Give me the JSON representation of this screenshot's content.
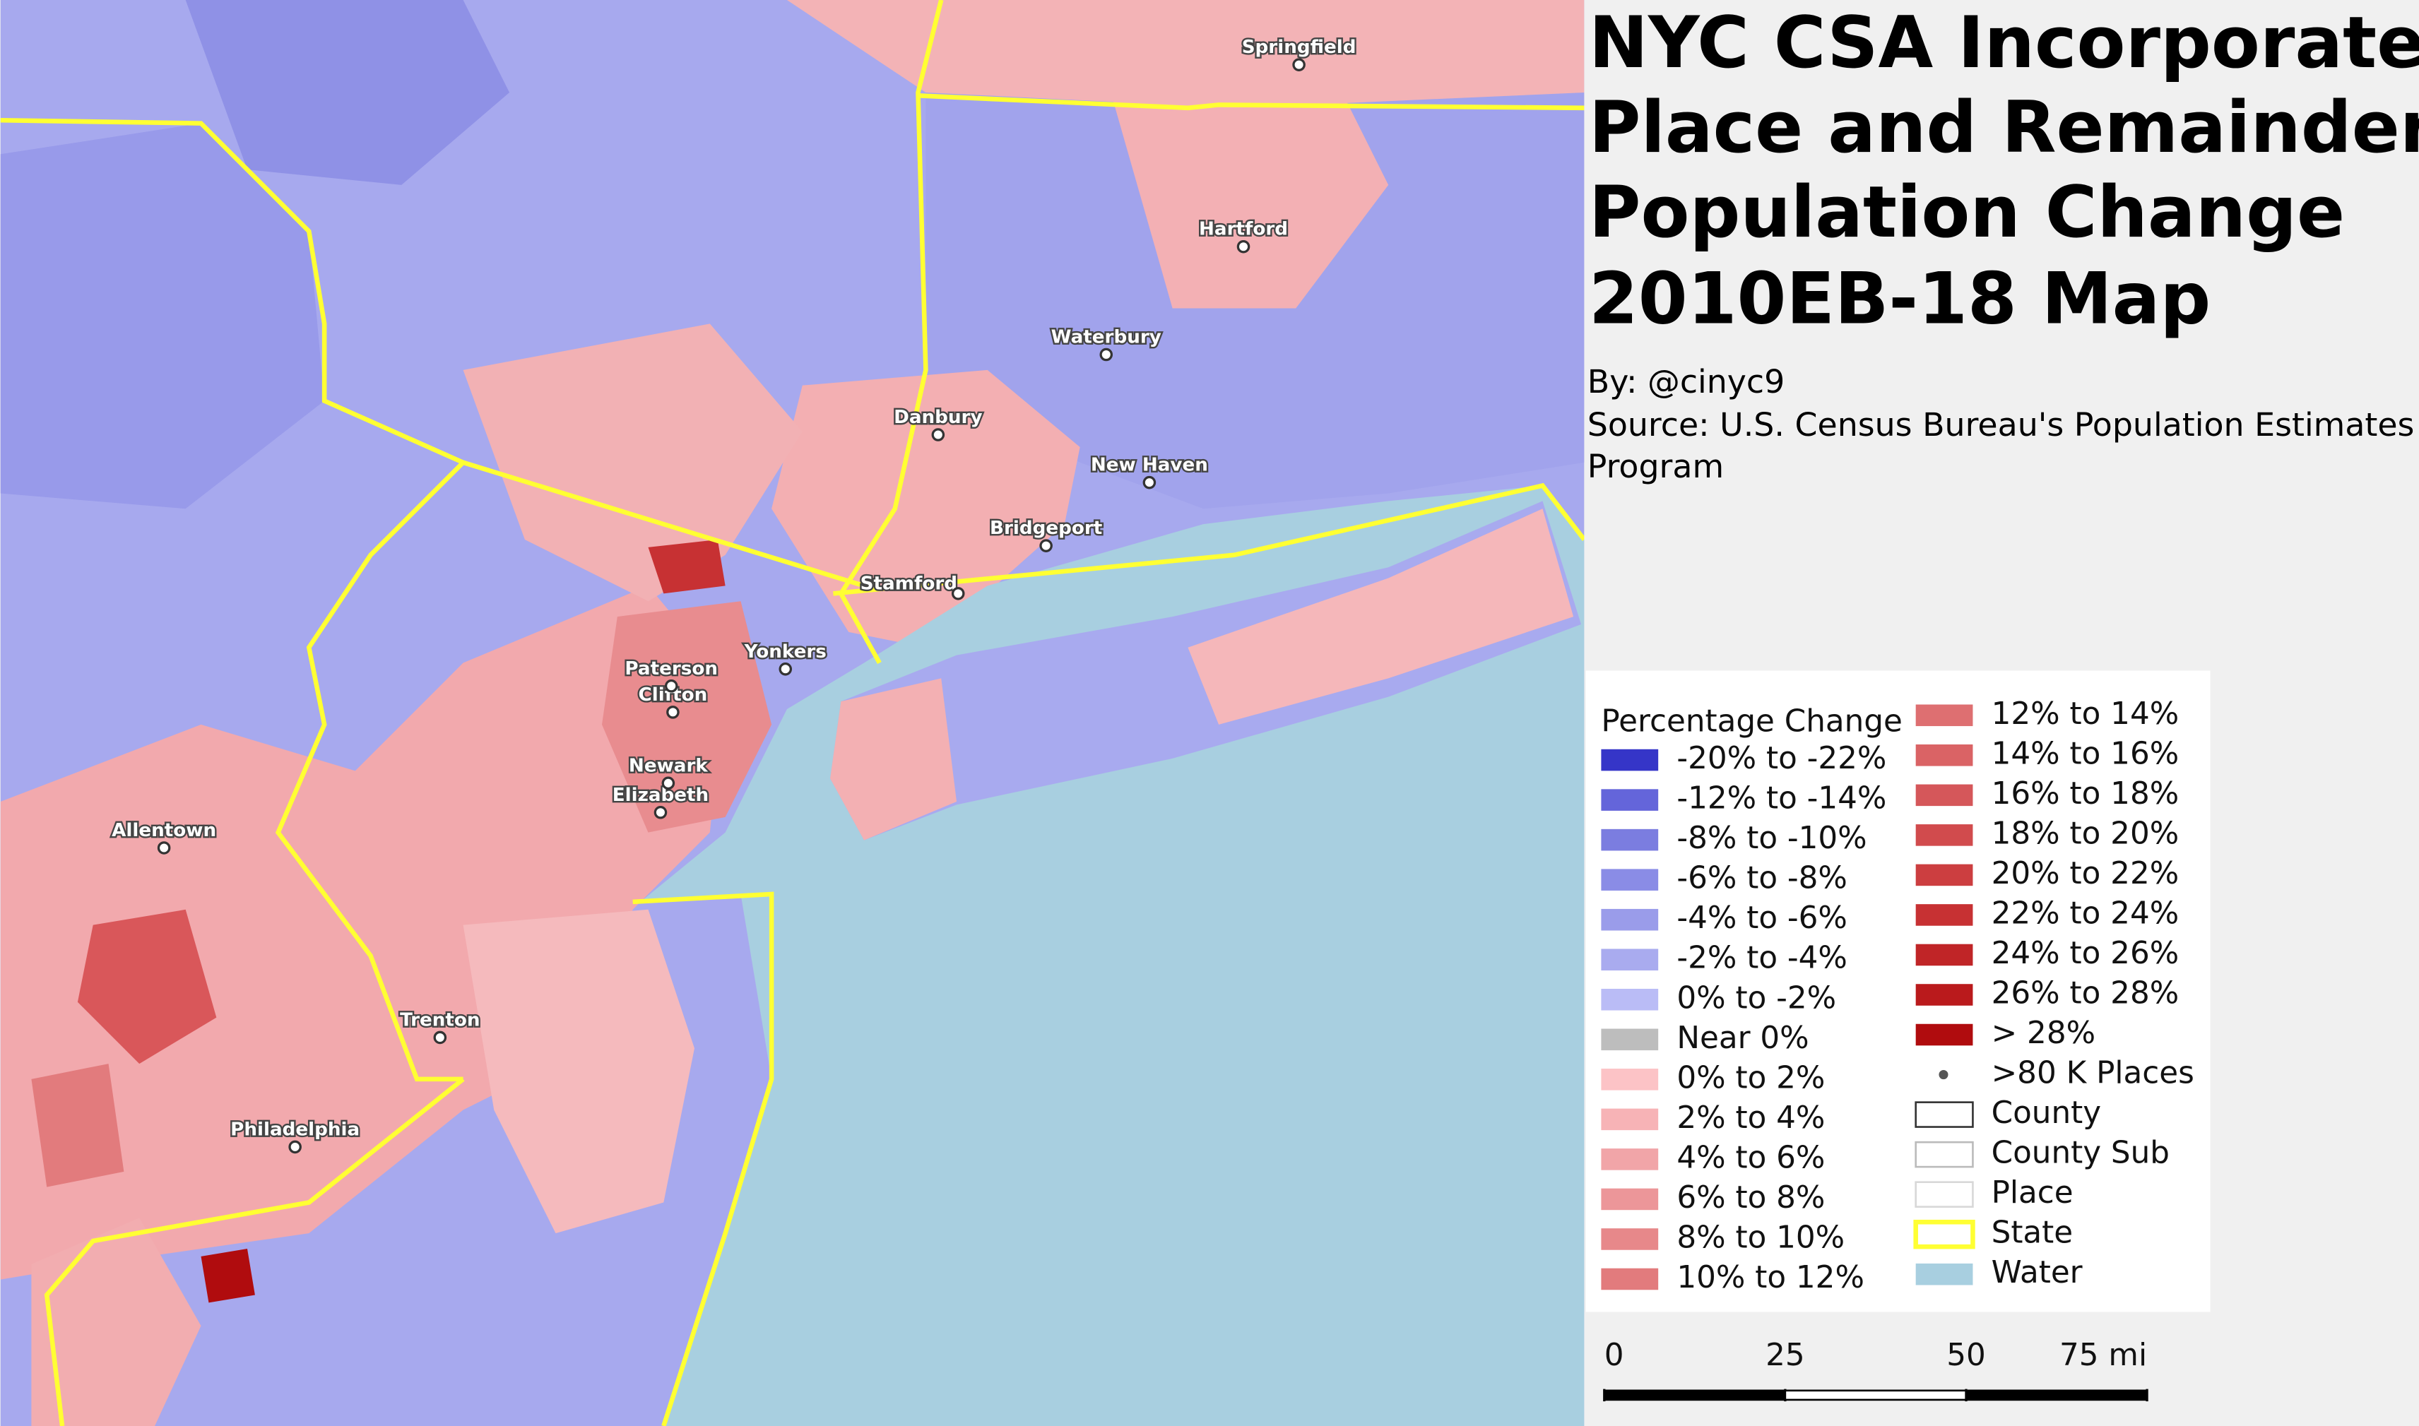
{
  "header": {
    "title_lines": [
      "NYC CSA Incorporated",
      "Place and Remainder",
      "Population Change",
      "2010EB-18 Map"
    ],
    "byline": "By: @cinyc9",
    "source_lines": [
      "Source: U.S. Census Bureau's Population Estimates",
      "Program"
    ]
  },
  "legend": {
    "title": "Percentage Change",
    "items": [
      {
        "label": "-20% to -22%",
        "color": "#3535c8"
      },
      {
        "label": "-12% to -14%",
        "color": "#6465da"
      },
      {
        "label": "-8% to -10%",
        "color": "#7b7de0"
      },
      {
        "label": "-6% to -8%",
        "color": "#8a8ce6"
      },
      {
        "label": "-4% to -6%",
        "color": "#9a9cea"
      },
      {
        "label": "-2% to -4%",
        "color": "#a9abef"
      },
      {
        "label": "0% to -2%",
        "color": "#babcf6"
      },
      {
        "label": "Near 0%",
        "color": "#bdbdbd"
      },
      {
        "label": "0% to 2%",
        "color": "#fcc3c6"
      },
      {
        "label": "2% to 4%",
        "color": "#f7b3b6"
      },
      {
        "label": "4% to 6%",
        "color": "#f1a5a8"
      },
      {
        "label": "6% to 8%",
        "color": "#ec9699"
      },
      {
        "label": "8% to 10%",
        "color": "#e7888a"
      },
      {
        "label": "10% to 12%",
        "color": "#e27b7d"
      },
      {
        "label": "12% to 14%",
        "color": "#de6f71"
      },
      {
        "label": "14% to 16%",
        "color": "#da6365"
      },
      {
        "label": "16% to 18%",
        "color": "#d5575a"
      },
      {
        "label": "18% to 20%",
        "color": "#d14b4d"
      },
      {
        "label": "20% to 22%",
        "color": "#cc3e40"
      },
      {
        "label": "22% to 24%",
        "color": "#c73133"
      },
      {
        "label": "24% to 26%",
        "color": "#c02527"
      },
      {
        "label": "26% to 28%",
        "color": "#ba1a1c"
      },
      {
        "label": "> 28%",
        "color": "#b00c0e"
      },
      {
        "label": ">80 K Places",
        "color": "#555555",
        "symbol": "dot"
      },
      {
        "label": "County",
        "color": "#333333",
        "symbol": "outline"
      },
      {
        "label": "County Sub",
        "color": "#bbbbbb",
        "symbol": "outline"
      },
      {
        "label": "Place",
        "color": "#d8d8d8",
        "symbol": "outline"
      },
      {
        "label": "State",
        "color": "#ffff33",
        "symbol": "outline"
      },
      {
        "label": "Water",
        "color": "#a8cfe0"
      }
    ]
  },
  "cities": [
    "Springfield",
    "Hartford",
    "Waterbury",
    "Danbury",
    "New Haven",
    "Bridgeport",
    "Stamford",
    "Yonkers",
    "Paterson",
    "Clifton",
    "Newark",
    "Elizabeth",
    "Allentown",
    "Trenton",
    "Philadelphia"
  ],
  "scale_bar": {
    "ticks": [
      0,
      25,
      50,
      {
        "value": 75,
        "label": "75 mi"
      }
    ]
  }
}
